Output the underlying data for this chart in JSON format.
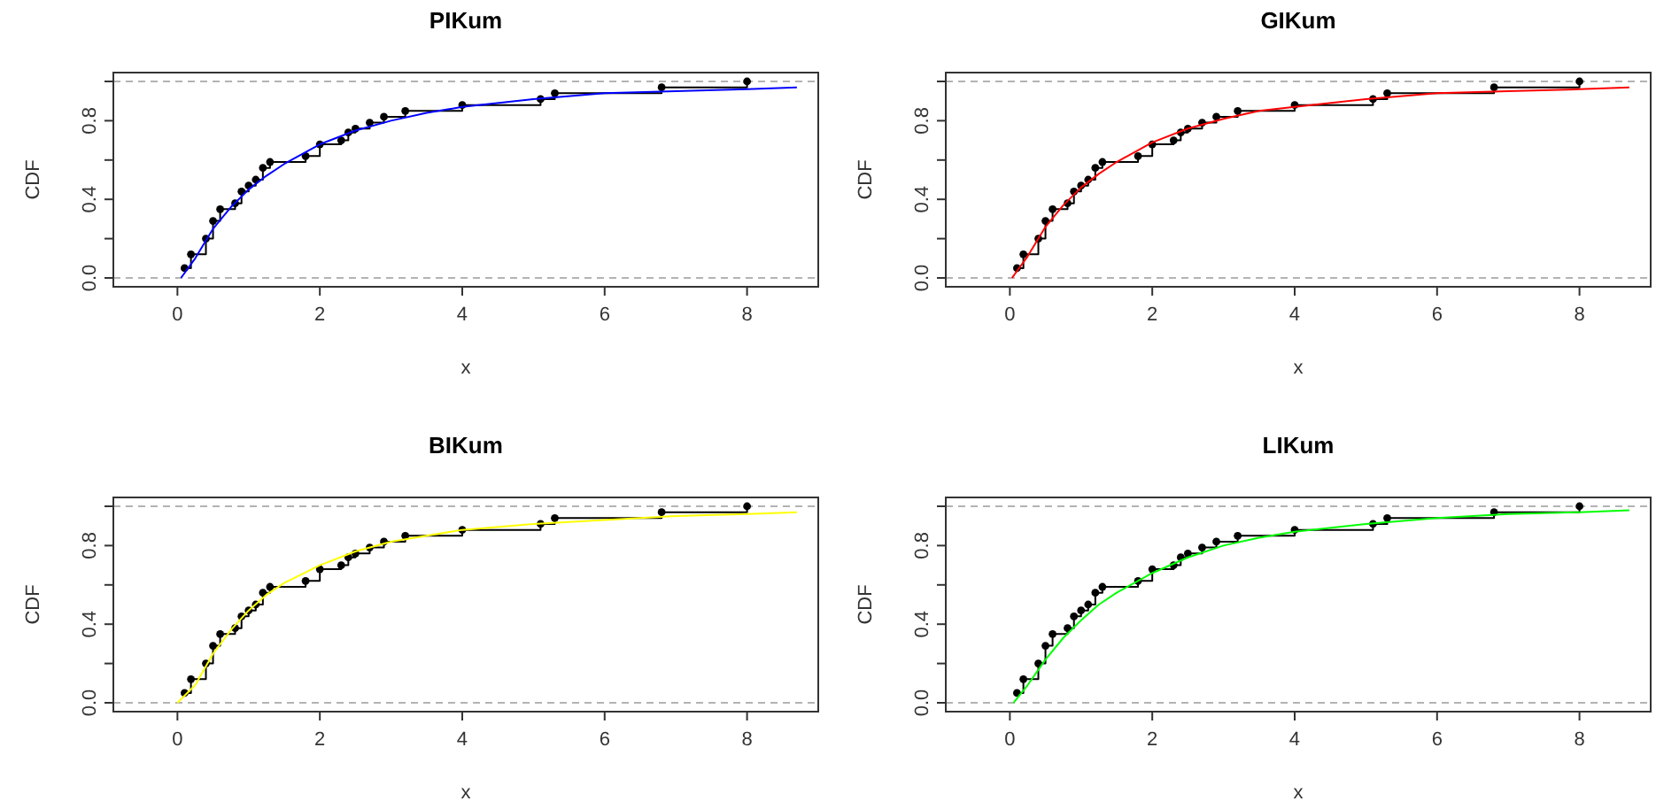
{
  "chart_data": [
    {
      "type": "line",
      "title": "PIKum",
      "xlabel": "x",
      "ylabel": "CDF",
      "xlim": [
        -0.9,
        9
      ],
      "ylim": [
        -0.045,
        1.045
      ],
      "xticks": [
        0,
        2,
        4,
        6,
        8
      ],
      "yticks": [
        {
          "value": 0,
          "label": "0.0"
        },
        {
          "value": 0.2,
          "label": null
        },
        {
          "value": 0.4,
          "label": "0.4"
        },
        {
          "value": 0.6,
          "label": null
        },
        {
          "value": 0.8,
          "label": "0.8"
        },
        {
          "value": 1,
          "label": null
        }
      ],
      "grid": false,
      "ref_lines": [
        {
          "axis": "y",
          "value": 0,
          "color": "#b3b3b3",
          "line_style": "dashed"
        },
        {
          "axis": "y",
          "value": 1,
          "color": "#b3b3b3",
          "line_style": "dashed"
        }
      ],
      "series": [
        {
          "type": "step",
          "color": "#000000",
          "marker": "circle",
          "x": [
            0.1,
            0.19,
            0.4,
            0.5,
            0.6,
            0.81,
            0.9,
            1.0,
            1.1,
            1.2,
            1.3,
            1.8,
            2.0,
            2.3,
            2.4,
            2.5,
            2.7,
            2.9,
            3.2,
            4.0,
            5.1,
            5.3,
            6.8,
            8.0
          ],
          "values": [
            0.05,
            0.12,
            0.2,
            0.29,
            0.35,
            0.38,
            0.44,
            0.47,
            0.5,
            0.56,
            0.59,
            0.62,
            0.68,
            0.7,
            0.74,
            0.76,
            0.79,
            0.82,
            0.85,
            0.88,
            0.91,
            0.94,
            0.97,
            1.0
          ]
        },
        {
          "type": "line",
          "color": "#0000ff",
          "marker": "none",
          "x": [
            0.05,
            0.25,
            0.5,
            0.75,
            1,
            1.25,
            1.5,
            2,
            2.5,
            3,
            3.5,
            4,
            5,
            6,
            7,
            8,
            8.7
          ],
          "values": [
            0,
            0.1,
            0.25,
            0.36,
            0.45,
            0.52,
            0.58,
            0.68,
            0.75,
            0.8,
            0.84,
            0.87,
            0.91,
            0.94,
            0.95,
            0.96,
            0.97
          ]
        }
      ]
    },
    {
      "type": "line",
      "title": "GIKum",
      "xlabel": "x",
      "ylabel": "CDF",
      "xlim": [
        -0.9,
        9
      ],
      "ylim": [
        -0.045,
        1.045
      ],
      "xticks": [
        0,
        2,
        4,
        6,
        8
      ],
      "yticks": [
        {
          "value": 0,
          "label": "0.0"
        },
        {
          "value": 0.2,
          "label": null
        },
        {
          "value": 0.4,
          "label": "0.4"
        },
        {
          "value": 0.6,
          "label": null
        },
        {
          "value": 0.8,
          "label": "0.8"
        },
        {
          "value": 1,
          "label": null
        }
      ],
      "grid": false,
      "ref_lines": [
        {
          "axis": "y",
          "value": 0,
          "color": "#b3b3b3",
          "line_style": "dashed"
        },
        {
          "axis": "y",
          "value": 1,
          "color": "#b3b3b3",
          "line_style": "dashed"
        }
      ],
      "series": [
        {
          "type": "step",
          "color": "#000000",
          "marker": "circle",
          "x": [
            0.1,
            0.19,
            0.4,
            0.5,
            0.6,
            0.81,
            0.9,
            1.0,
            1.1,
            1.2,
            1.3,
            1.8,
            2.0,
            2.3,
            2.4,
            2.5,
            2.7,
            2.9,
            3.2,
            4.0,
            5.1,
            5.3,
            6.8,
            8.0
          ],
          "values": [
            0.05,
            0.12,
            0.2,
            0.29,
            0.35,
            0.38,
            0.44,
            0.47,
            0.5,
            0.56,
            0.59,
            0.62,
            0.68,
            0.7,
            0.74,
            0.76,
            0.79,
            0.82,
            0.85,
            0.88,
            0.91,
            0.94,
            0.97,
            1.0
          ]
        },
        {
          "type": "line",
          "color": "#ff0000",
          "marker": "none",
          "x": [
            0.03,
            0.25,
            0.5,
            0.75,
            1,
            1.25,
            1.5,
            2,
            2.5,
            3,
            3.5,
            4,
            5,
            6,
            7,
            8,
            8.7
          ],
          "values": [
            0,
            0.11,
            0.26,
            0.37,
            0.46,
            0.53,
            0.59,
            0.69,
            0.76,
            0.81,
            0.85,
            0.87,
            0.91,
            0.94,
            0.95,
            0.96,
            0.97
          ]
        }
      ]
    },
    {
      "type": "line",
      "title": "BIKum",
      "xlabel": "x",
      "ylabel": "CDF",
      "xlim": [
        -0.9,
        9
      ],
      "ylim": [
        -0.045,
        1.045
      ],
      "xticks": [
        0,
        2,
        4,
        6,
        8
      ],
      "yticks": [
        {
          "value": 0,
          "label": "0.0"
        },
        {
          "value": 0.2,
          "label": null
        },
        {
          "value": 0.4,
          "label": "0.4"
        },
        {
          "value": 0.6,
          "label": null
        },
        {
          "value": 0.8,
          "label": "0.8"
        },
        {
          "value": 1,
          "label": null
        }
      ],
      "grid": false,
      "ref_lines": [
        {
          "axis": "y",
          "value": 0,
          "color": "#b3b3b3",
          "line_style": "dashed"
        },
        {
          "axis": "y",
          "value": 1,
          "color": "#b3b3b3",
          "line_style": "dashed"
        }
      ],
      "series": [
        {
          "type": "step",
          "color": "#000000",
          "marker": "circle",
          "x": [
            0.1,
            0.19,
            0.4,
            0.5,
            0.6,
            0.81,
            0.9,
            1.0,
            1.1,
            1.2,
            1.3,
            1.8,
            2.0,
            2.3,
            2.4,
            2.5,
            2.7,
            2.9,
            3.2,
            4.0,
            5.1,
            5.3,
            6.8,
            8.0
          ],
          "values": [
            0.05,
            0.12,
            0.2,
            0.29,
            0.35,
            0.38,
            0.44,
            0.47,
            0.5,
            0.56,
            0.59,
            0.62,
            0.68,
            0.7,
            0.74,
            0.76,
            0.79,
            0.82,
            0.85,
            0.88,
            0.91,
            0.94,
            0.97,
            1.0
          ]
        },
        {
          "type": "line",
          "color": "#ffff00",
          "marker": "none",
          "x": [
            0.0,
            0.25,
            0.5,
            0.75,
            1,
            1.25,
            1.5,
            2,
            2.5,
            3,
            3.5,
            4,
            5,
            6,
            7,
            8,
            8.7
          ],
          "values": [
            0,
            0.09,
            0.25,
            0.37,
            0.47,
            0.55,
            0.61,
            0.7,
            0.77,
            0.82,
            0.85,
            0.88,
            0.91,
            0.93,
            0.95,
            0.96,
            0.97
          ]
        }
      ]
    },
    {
      "type": "line",
      "title": "LIKum",
      "xlabel": "x",
      "ylabel": "CDF",
      "xlim": [
        -0.9,
        9
      ],
      "ylim": [
        -0.045,
        1.045
      ],
      "xticks": [
        0,
        2,
        4,
        6,
        8
      ],
      "yticks": [
        {
          "value": 0,
          "label": "0.0"
        },
        {
          "value": 0.2,
          "label": null
        },
        {
          "value": 0.4,
          "label": "0.4"
        },
        {
          "value": 0.6,
          "label": null
        },
        {
          "value": 0.8,
          "label": "0.8"
        },
        {
          "value": 1,
          "label": null
        }
      ],
      "grid": false,
      "ref_lines": [
        {
          "axis": "y",
          "value": 0,
          "color": "#b3b3b3",
          "line_style": "dashed"
        },
        {
          "axis": "y",
          "value": 1,
          "color": "#b3b3b3",
          "line_style": "dashed"
        }
      ],
      "series": [
        {
          "type": "step",
          "color": "#000000",
          "marker": "circle",
          "x": [
            0.1,
            0.19,
            0.4,
            0.5,
            0.6,
            0.81,
            0.9,
            1.0,
            1.1,
            1.2,
            1.3,
            1.8,
            2.0,
            2.3,
            2.4,
            2.5,
            2.7,
            2.9,
            3.2,
            4.0,
            5.1,
            5.3,
            6.8,
            8.0
          ],
          "values": [
            0.05,
            0.12,
            0.2,
            0.29,
            0.35,
            0.38,
            0.44,
            0.47,
            0.5,
            0.56,
            0.59,
            0.62,
            0.68,
            0.7,
            0.74,
            0.76,
            0.79,
            0.82,
            0.85,
            0.88,
            0.91,
            0.94,
            0.97,
            1.0
          ]
        },
        {
          "type": "line",
          "color": "#00ff00",
          "marker": "none",
          "x": [
            0.05,
            0.25,
            0.5,
            0.75,
            1,
            1.25,
            1.5,
            2,
            2.5,
            3,
            3.5,
            4,
            5,
            6,
            7,
            8,
            8.7
          ],
          "values": [
            0,
            0.09,
            0.22,
            0.33,
            0.42,
            0.5,
            0.56,
            0.66,
            0.74,
            0.8,
            0.84,
            0.87,
            0.91,
            0.94,
            0.96,
            0.97,
            0.98
          ]
        }
      ]
    }
  ]
}
